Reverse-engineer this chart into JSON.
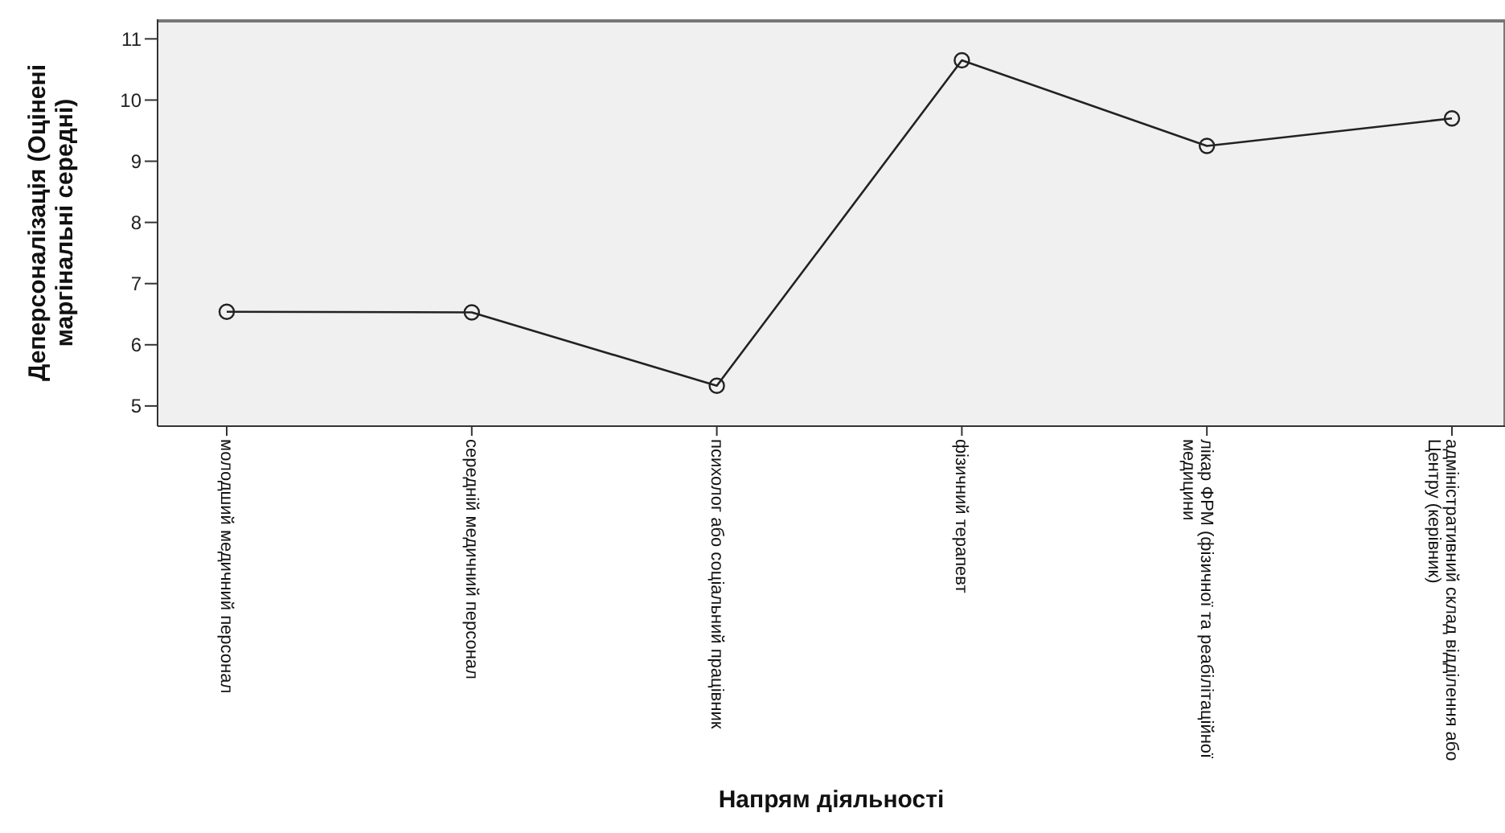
{
  "chart_data": {
    "type": "line",
    "xlabel": "Напрям діяльності",
    "ylabel": "Деперсоналізація (Оцінені маргінальні середні)",
    "categories": [
      "молодший медичний персонал",
      "середній медичний персонал",
      "психолог або соціальний працівник",
      "фізичний терапевт",
      "лікар ФРМ (фізичної та реабілітаційної медицини",
      "адміністративний склад відділення або Центру (керівник)"
    ],
    "series": [
      {
        "color": "#222222",
        "values": [
          6.54,
          6.53,
          5.33,
          10.65,
          9.25,
          9.7
        ]
      }
    ],
    "ylim": [
      4.67,
      11.32
    ],
    "yticks": [
      5,
      6,
      7,
      8,
      9,
      10,
      11
    ],
    "marker": "circle",
    "line_style": "solid"
  }
}
